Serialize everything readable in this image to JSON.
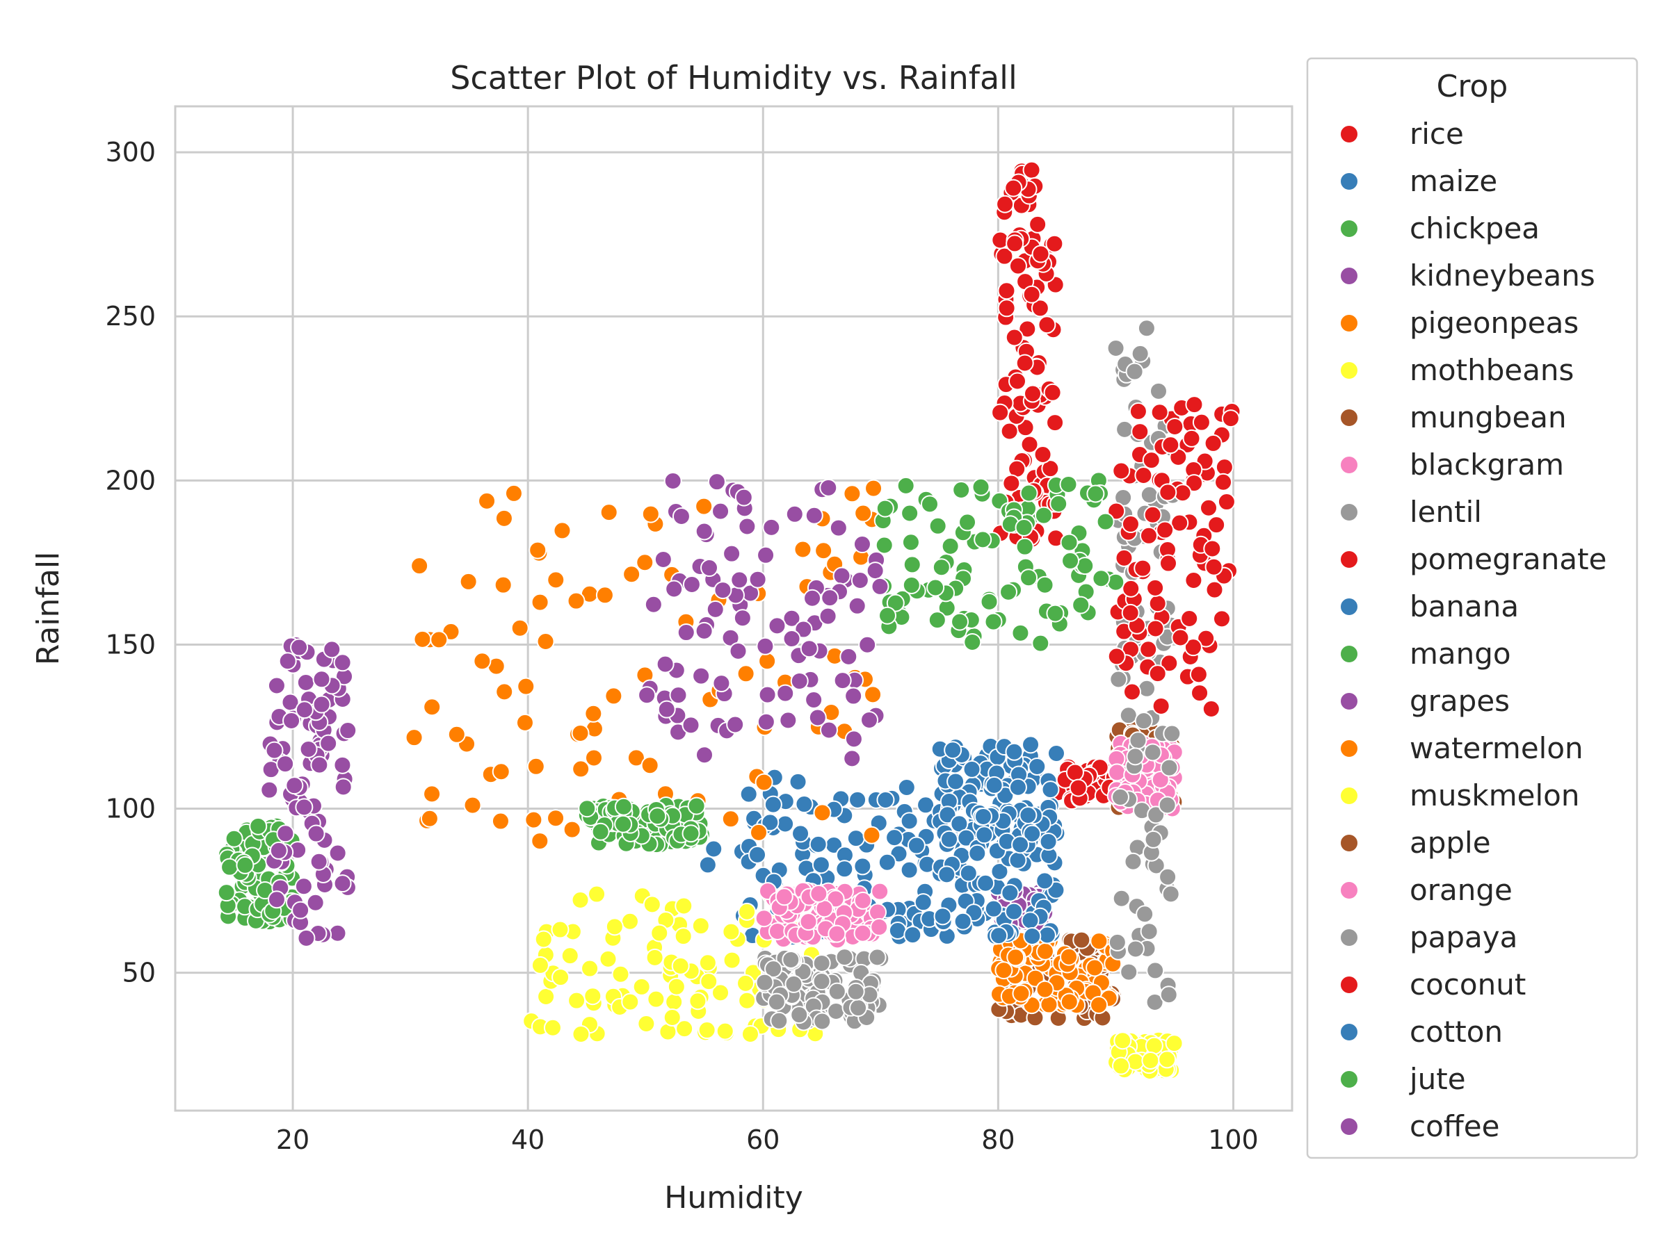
{
  "chart_data": {
    "type": "scatter",
    "title": "Scatter Plot of Humidity vs. Rainfall",
    "xlabel": "Humidity",
    "ylabel": "Rainfall",
    "xlim": [
      10,
      105
    ],
    "ylim": [
      8,
      314
    ],
    "xticks": [
      20,
      40,
      60,
      80,
      100
    ],
    "yticks": [
      50,
      100,
      150,
      200,
      250,
      300
    ],
    "grid": true,
    "legend": {
      "title": "Crop",
      "placement": "outside-right"
    },
    "series": [
      {
        "name": "rice",
        "color": "#e41a1c",
        "region": {
          "x": [
            80.1,
            84.9
          ],
          "y": [
            182,
            299
          ]
        },
        "count": 100
      },
      {
        "name": "maize",
        "color": "#377eb8",
        "region": {
          "x": [
            55.3,
            74.8
          ],
          "y": [
            60.7,
            109.8
          ]
        },
        "count": 100
      },
      {
        "name": "chickpea",
        "color": "#4daf4a",
        "region": {
          "x": [
            14.3,
            20
          ],
          "y": [
            65,
            95
          ]
        },
        "count": 100
      },
      {
        "name": "kidneybeans",
        "color": "#984ea3",
        "region": {
          "x": [
            18,
            25
          ],
          "y": [
            60,
            150
          ]
        },
        "count": 100
      },
      {
        "name": "pigeonpeas",
        "color": "#ff7f00",
        "region": {
          "x": [
            30,
            70
          ],
          "y": [
            90,
            199
          ]
        },
        "count": 100
      },
      {
        "name": "mothbeans",
        "color": "#ffff33",
        "region": {
          "x": [
            40,
            65
          ],
          "y": [
            30.9,
            74
          ]
        },
        "count": 100
      },
      {
        "name": "mungbean",
        "color": "#a65628",
        "region": {
          "x": [
            80,
            90
          ],
          "y": [
            36,
            60
          ]
        },
        "count": 100
      },
      {
        "name": "blackgram",
        "color": "#f781bf",
        "region": {
          "x": [
            60,
            70
          ],
          "y": [
            60,
            75
          ]
        },
        "count": 100
      },
      {
        "name": "lentil",
        "color": "#999999",
        "region": {
          "x": [
            60,
            70
          ],
          "y": [
            35,
            55
          ]
        },
        "count": 100
      },
      {
        "name": "pomegranate",
        "color": "#e41a1c",
        "region": {
          "x": [
            85,
            95
          ],
          "y": [
            102,
            113
          ]
        },
        "count": 100
      },
      {
        "name": "banana",
        "color": "#377eb8",
        "region": {
          "x": [
            75,
            85
          ],
          "y": [
            90,
            120
          ]
        },
        "count": 100
      },
      {
        "name": "mango",
        "color": "#4daf4a",
        "region": {
          "x": [
            45,
            55
          ],
          "y": [
            89,
            101
          ]
        },
        "count": 100
      },
      {
        "name": "grapes",
        "color": "#984ea3",
        "region": {
          "x": [
            80,
            84
          ],
          "y": [
            65,
            75
          ]
        },
        "count": 100
      },
      {
        "name": "watermelon",
        "color": "#ff7f00",
        "region": {
          "x": [
            80,
            90
          ],
          "y": [
            40,
            60
          ]
        },
        "count": 100
      },
      {
        "name": "muskmelon",
        "color": "#ffff33",
        "region": {
          "x": [
            90,
            95
          ],
          "y": [
            20,
            30
          ]
        },
        "count": 100
      },
      {
        "name": "apple",
        "color": "#a65628",
        "region": {
          "x": [
            90,
            95
          ],
          "y": [
            100,
            125
          ]
        },
        "count": 100
      },
      {
        "name": "orange",
        "color": "#f781bf",
        "region": {
          "x": [
            90,
            95
          ],
          "y": [
            100,
            120
          ]
        },
        "count": 100
      },
      {
        "name": "papaya",
        "color": "#999999",
        "region": {
          "x": [
            90,
            95
          ],
          "y": [
            40,
            249
          ]
        },
        "count": 100
      },
      {
        "name": "coconut",
        "color": "#e41a1c",
        "region": {
          "x": [
            90,
            100
          ],
          "y": [
            130,
            226
          ]
        },
        "count": 100
      },
      {
        "name": "cotton",
        "color": "#377eb8",
        "region": {
          "x": [
            75,
            85
          ],
          "y": [
            60,
            100
          ]
        },
        "count": 100
      },
      {
        "name": "jute",
        "color": "#4daf4a",
        "region": {
          "x": [
            70,
            90
          ],
          "y": [
            150,
            200
          ]
        },
        "count": 100
      },
      {
        "name": "coffee",
        "color": "#984ea3",
        "region": {
          "x": [
            50,
            70
          ],
          "y": [
            115,
            200
          ]
        },
        "count": 100
      }
    ]
  }
}
